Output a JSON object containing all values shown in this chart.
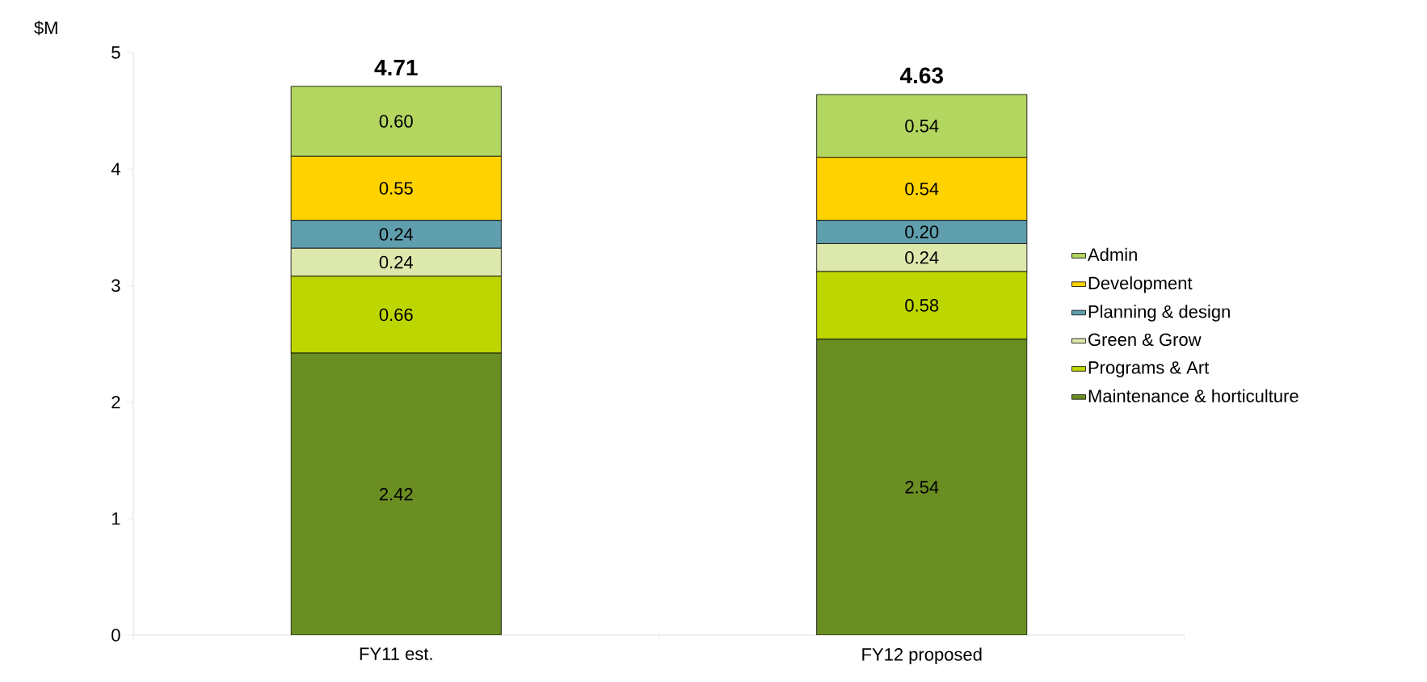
{
  "chart_data": {
    "type": "bar",
    "stacked": true,
    "ylabel": "$M",
    "categories": [
      "FY11 est.",
      "FY12 proposed"
    ],
    "ylim": [
      0,
      5
    ],
    "yticks": [
      0,
      1,
      2,
      3,
      4,
      5
    ],
    "legend": "right",
    "grid": false,
    "series": [
      {
        "name": "Maintenance & horticulture",
        "color": "#6b8e23",
        "values": [
          2.42,
          2.54
        ],
        "value_labels": [
          "2.42",
          "2.54"
        ]
      },
      {
        "name": "Programs & Art",
        "color": "#bed600",
        "values": [
          0.66,
          0.58
        ],
        "value_labels": [
          "0.66",
          "0.58"
        ]
      },
      {
        "name": "Green & Grow",
        "color": "#dde8ad",
        "values": [
          0.24,
          0.24
        ],
        "value_labels": [
          "0.24",
          "0.24"
        ]
      },
      {
        "name": "Planning & design",
        "color": "#5f9ead",
        "values": [
          0.24,
          0.2
        ],
        "value_labels": [
          "0.24",
          "0.20"
        ]
      },
      {
        "name": "Development",
        "color": "#ffd200",
        "values": [
          0.55,
          0.54
        ],
        "value_labels": [
          "0.55",
          "0.54"
        ]
      },
      {
        "name": "Admin",
        "color": "#b3d661",
        "values": [
          0.6,
          0.54
        ],
        "value_labels": [
          "0.60",
          "0.54"
        ]
      }
    ],
    "totals": [
      "4.71",
      "4.63"
    ]
  }
}
